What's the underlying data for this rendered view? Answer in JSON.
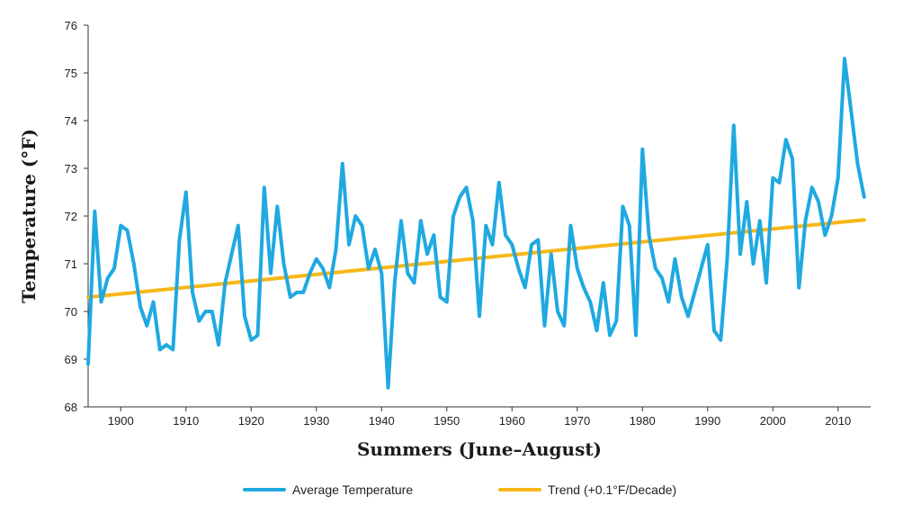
{
  "chart_data": {
    "type": "line",
    "title": "",
    "xlabel": "Summers (June–August)",
    "ylabel": "Temperature (°F)",
    "xlim": [
      1895,
      2015
    ],
    "ylim": [
      68,
      76
    ],
    "x_ticks": [
      1900,
      1910,
      1920,
      1930,
      1940,
      1950,
      1960,
      1970,
      1980,
      1990,
      2000,
      2010
    ],
    "y_ticks": [
      68,
      69,
      70,
      71,
      72,
      73,
      74,
      75,
      76
    ],
    "grid": false,
    "legend_position": "bottom",
    "series": [
      {
        "name": "Average Temperature",
        "color": "#1fa9e1",
        "x": [
          1895,
          1896,
          1897,
          1898,
          1899,
          1900,
          1901,
          1902,
          1903,
          1904,
          1905,
          1906,
          1907,
          1908,
          1909,
          1910,
          1911,
          1912,
          1913,
          1914,
          1915,
          1916,
          1917,
          1918,
          1919,
          1920,
          1921,
          1922,
          1923,
          1924,
          1925,
          1926,
          1927,
          1928,
          1929,
          1930,
          1931,
          1932,
          1933,
          1934,
          1935,
          1936,
          1937,
          1938,
          1939,
          1940,
          1941,
          1942,
          1943,
          1944,
          1945,
          1946,
          1947,
          1948,
          1949,
          1950,
          1951,
          1952,
          1953,
          1954,
          1955,
          1956,
          1957,
          1958,
          1959,
          1960,
          1961,
          1962,
          1963,
          1964,
          1965,
          1966,
          1967,
          1968,
          1969,
          1970,
          1971,
          1972,
          1973,
          1974,
          1975,
          1976,
          1977,
          1978,
          1979,
          1980,
          1981,
          1982,
          1983,
          1984,
          1985,
          1986,
          1987,
          1988,
          1989,
          1990,
          1991,
          1992,
          1993,
          1994,
          1995,
          1996,
          1997,
          1998,
          1999,
          2000,
          2001,
          2002,
          2003,
          2004,
          2005,
          2006,
          2007,
          2008,
          2009,
          2010,
          2011,
          2012,
          2013,
          2014
        ],
        "values": [
          68.9,
          72.1,
          70.2,
          70.7,
          70.9,
          71.8,
          71.7,
          71.0,
          70.1,
          69.7,
          70.2,
          69.2,
          69.3,
          69.2,
          71.5,
          72.5,
          70.4,
          69.8,
          70.0,
          70.0,
          69.3,
          70.6,
          71.2,
          71.8,
          69.9,
          69.4,
          69.5,
          72.6,
          70.8,
          72.2,
          71.0,
          70.3,
          70.4,
          70.4,
          70.8,
          71.1,
          70.9,
          70.5,
          71.3,
          73.1,
          71.4,
          72.0,
          71.8,
          70.9,
          71.3,
          70.8,
          68.4,
          70.6,
          71.9,
          70.8,
          70.6,
          71.9,
          71.2,
          71.6,
          70.3,
          70.2,
          72.0,
          72.4,
          72.6,
          71.9,
          69.9,
          71.8,
          71.4,
          72.7,
          71.6,
          71.4,
          70.9,
          70.5,
          71.4,
          71.5,
          69.7,
          71.2,
          70.0,
          69.7,
          71.8,
          70.9,
          70.5,
          70.2,
          69.6,
          70.6,
          69.5,
          69.8,
          72.2,
          71.8,
          69.5,
          73.4,
          71.6,
          70.9,
          70.7,
          70.2,
          71.1,
          70.3,
          69.9,
          70.4,
          70.9,
          71.4,
          69.6,
          69.4,
          71.1,
          73.9,
          71.2,
          72.3,
          71.0,
          71.9,
          70.6,
          72.8,
          72.7,
          73.6,
          73.2,
          70.5,
          71.9,
          72.6,
          72.3,
          71.6,
          72.0,
          72.8,
          75.3,
          74.2,
          73.1,
          72.4
        ]
      },
      {
        "name": "Trend (+0.1°F/Decade)",
        "color": "#f7b718",
        "x": [
          1895,
          2014
        ],
        "values": [
          70.3,
          71.92
        ]
      }
    ]
  },
  "legend": {
    "items": [
      {
        "label": "Average Temperature",
        "color": "#1fa9e1"
      },
      {
        "label": "Trend (+0.1°F/Decade)",
        "color": "#f7b718"
      }
    ]
  }
}
